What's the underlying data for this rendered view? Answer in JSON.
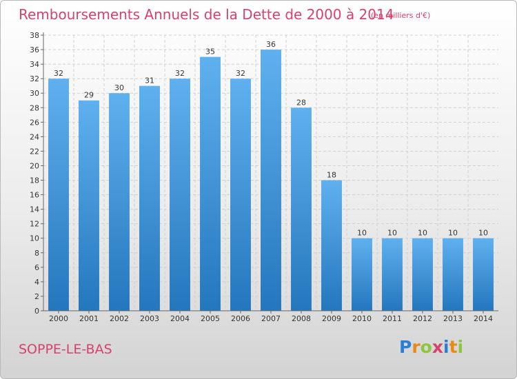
{
  "header": {
    "title": "Remboursements Annuels de la Dette de 2000 à 2014",
    "subtitle": "(en milliers d'€)"
  },
  "footer": {
    "city": "SOPPE-LE-BAS",
    "logo_letters": [
      "P",
      "r",
      "o",
      "x",
      "i",
      "t",
      "i"
    ],
    "logo_colors": [
      "#2b7fd3",
      "#e88a1a",
      "#8cc63f",
      "#d6416e",
      "#2b7fd3",
      "#e88a1a",
      "#8cc63f"
    ]
  },
  "colors": {
    "bar_top": "#5fb0ee",
    "bar_bottom": "#2477bd",
    "title": "#d6416e"
  },
  "chart_data": {
    "type": "bar",
    "categories": [
      "2000",
      "2001",
      "2002",
      "2003",
      "2004",
      "2005",
      "2006",
      "2007",
      "2008",
      "2009",
      "2010",
      "2011",
      "2012",
      "2013",
      "2014"
    ],
    "values": [
      32,
      29,
      30,
      31,
      32,
      35,
      32,
      36,
      28,
      18,
      10,
      10,
      10,
      10,
      10
    ],
    "title": "Remboursements Annuels de la Dette de 2000 à 2014",
    "ylim": [
      0,
      38
    ],
    "ytick_step": 2,
    "grid": true
  }
}
